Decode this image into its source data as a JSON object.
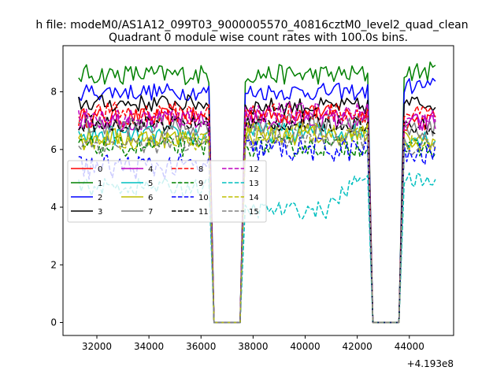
{
  "chart_data": {
    "type": "line",
    "suptitle": "h file: modeM0/AS1A12_099T03_9000005570_40816cztM0_level2_quad_clean",
    "title": "Quadrant 0 module wise count rates with 100.0s bins.",
    "xlabel": "",
    "ylabel": "",
    "x_offset_text": "+4.193e8",
    "xlim": [
      30700,
      45700
    ],
    "ylim": [
      -0.45,
      9.6
    ],
    "x_ticks": [
      32000,
      34000,
      36000,
      38000,
      40000,
      42000,
      44000
    ],
    "x_tick_labels": [
      "32000",
      "34000",
      "36000",
      "38000",
      "40000",
      "42000",
      "44000"
    ],
    "y_ticks": [
      0,
      2,
      4,
      6,
      8
    ],
    "y_tick_labels": [
      "0",
      "2",
      "4",
      "6",
      "8"
    ],
    "grid": false,
    "legend_position": "center-left",
    "legend_columns": 4,
    "segments": [
      {
        "x_start": 31300,
        "x_end": 36300
      },
      {
        "x_start": 37700,
        "x_end": 42400
      },
      {
        "x_start": 43800,
        "x_end": 45000
      }
    ],
    "gaps": [
      {
        "x_start": 36500,
        "x_end": 37500
      },
      {
        "x_start": 42600,
        "x_end": 43600
      }
    ],
    "series": [
      {
        "name": "0",
        "color": "#ff0000",
        "dash": "solid",
        "levels": [
          7.1,
          7.2,
          7.0
        ],
        "noise": 0.35
      },
      {
        "name": "1",
        "color": "#008000",
        "dash": "solid",
        "levels": [
          8.6,
          8.6,
          8.7
        ],
        "noise": 0.35
      },
      {
        "name": "2",
        "color": "#0000ff",
        "dash": "solid",
        "levels": [
          8.0,
          8.0,
          8.2
        ],
        "noise": 0.3
      },
      {
        "name": "3",
        "color": "#000000",
        "dash": "solid",
        "levels": [
          7.6,
          7.5,
          7.6
        ],
        "noise": 0.3
      },
      {
        "name": "4",
        "color": "#bf00bf",
        "dash": "solid",
        "levels": [
          7.0,
          7.0,
          6.9
        ],
        "noise": 0.35
      },
      {
        "name": "5",
        "color": "#00bfbf",
        "dash": "solid",
        "levels": [
          6.5,
          6.6,
          6.4
        ],
        "noise": 0.35
      },
      {
        "name": "6",
        "color": "#bfbf00",
        "dash": "solid",
        "levels": [
          6.4,
          6.5,
          6.3
        ],
        "noise": 0.35
      },
      {
        "name": "7",
        "color": "#808080",
        "dash": "solid",
        "levels": [
          6.8,
          6.9,
          6.7
        ],
        "noise": 0.35
      },
      {
        "name": "8",
        "color": "#ff0000",
        "dash": "dashed",
        "levels": [
          7.3,
          7.3,
          7.2
        ],
        "noise": 0.35
      },
      {
        "name": "9",
        "color": "#008000",
        "dash": "dashed",
        "levels": [
          6.1,
          6.1,
          6.0
        ],
        "noise": 0.35
      },
      {
        "name": "10",
        "color": "#0000ff",
        "dash": "dashed",
        "levels": [
          5.4,
          6.0,
          5.8
        ],
        "noise": 0.45
      },
      {
        "name": "11",
        "color": "#000000",
        "dash": "dashed",
        "levels": [
          6.9,
          6.9,
          6.8
        ],
        "noise": 0.3
      },
      {
        "name": "12",
        "color": "#bf00bf",
        "dash": "dashed",
        "levels": [
          7.1,
          7.3,
          7.0
        ],
        "noise": 0.35
      },
      {
        "name": "13",
        "color": "#00bfbf",
        "dash": "dashed",
        "levels": [
          4.7,
          4.5,
          4.9
        ],
        "noise": 0.3
      },
      {
        "name": "14",
        "color": "#bfbf00",
        "dash": "dashed",
        "levels": [
          6.3,
          6.6,
          6.2
        ],
        "noise": 0.35
      },
      {
        "name": "15",
        "color": "#808080",
        "dash": "dashed",
        "levels": [
          6.2,
          6.4,
          6.1
        ],
        "noise": 0.35
      }
    ]
  }
}
